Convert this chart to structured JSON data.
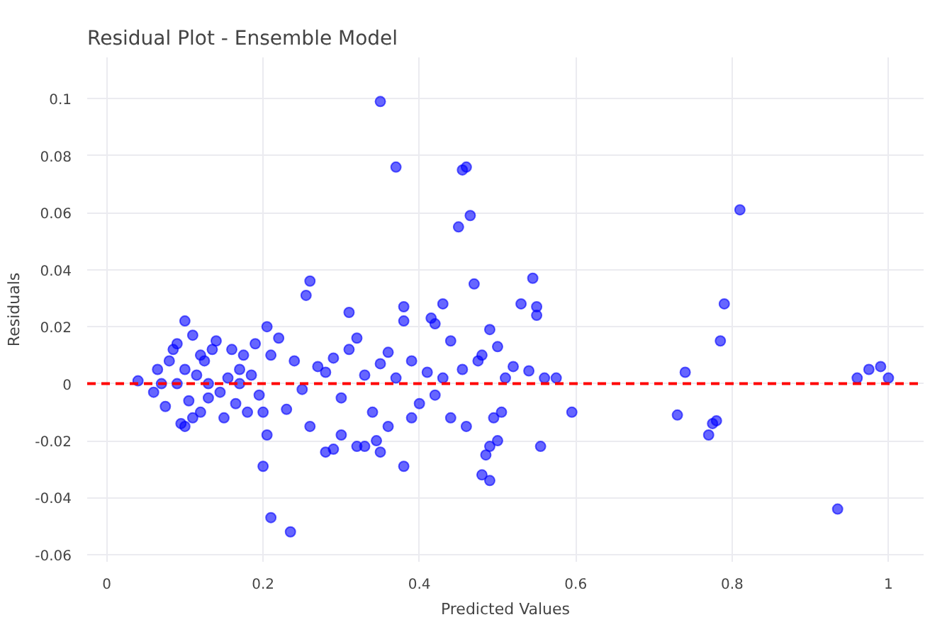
{
  "chart_data": {
    "type": "scatter",
    "title": "Residual Plot - Ensemble Model",
    "xlabel": "Predicted Values",
    "ylabel": "Residuals",
    "xlim": [
      -0.025,
      1.045
    ],
    "ylim": [
      -0.0625,
      0.1145
    ],
    "xticks": [
      0,
      0.2,
      0.4,
      0.6,
      0.8,
      1
    ],
    "yticks": [
      -0.06,
      -0.04,
      -0.02,
      0,
      0.02,
      0.04,
      0.06,
      0.08,
      0.1
    ],
    "grid": true,
    "marker": "circle",
    "ref_lines": [
      {
        "axis": "y",
        "value": 0,
        "color": "#ff0000",
        "line_style": "dashed"
      }
    ],
    "series": [
      {
        "color": "#0000ff",
        "x": [
          0.35,
          0.37,
          0.455,
          0.46,
          0.465,
          0.45,
          0.47,
          0.81,
          0.26,
          0.255,
          0.79,
          0.785,
          0.74,
          0.73,
          0.775,
          0.78,
          0.77,
          0.935,
          0.96,
          0.975,
          0.99,
          1.0,
          0.595,
          0.575,
          0.555,
          0.56,
          0.545,
          0.55,
          0.55,
          0.53,
          0.54,
          0.52,
          0.48,
          0.49,
          0.485,
          0.49,
          0.5,
          0.21,
          0.235,
          0.2,
          0.205,
          0.205,
          0.38,
          0.38,
          0.43,
          0.415,
          0.42,
          0.31,
          0.38,
          0.28,
          0.29,
          0.35,
          0.32,
          0.33,
          0.345,
          0.36,
          0.3,
          0.49,
          0.5,
          0.51,
          0.505,
          0.495,
          0.46,
          0.475,
          0.48,
          0.44,
          0.455,
          0.04,
          0.1,
          0.11,
          0.09,
          0.095,
          0.1,
          0.15,
          0.07,
          0.06,
          0.08,
          0.12,
          0.13,
          0.14,
          0.16,
          0.17,
          0.18,
          0.19,
          0.2,
          0.21,
          0.22,
          0.23,
          0.24,
          0.25,
          0.27,
          0.26,
          0.28,
          0.29,
          0.3,
          0.31,
          0.32,
          0.33,
          0.34,
          0.35,
          0.36,
          0.37,
          0.39,
          0.4,
          0.41,
          0.42,
          0.43,
          0.44,
          0.39,
          0.065,
          0.075,
          0.085,
          0.1,
          0.105,
          0.115,
          0.12,
          0.125,
          0.135,
          0.145,
          0.155,
          0.165,
          0.175,
          0.185,
          0.195,
          0.11,
          0.09,
          0.13,
          0.17
        ],
        "values": [
          0.099,
          0.076,
          0.075,
          0.076,
          0.059,
          0.055,
          0.035,
          0.061,
          0.036,
          0.031,
          0.028,
          0.015,
          0.004,
          -0.011,
          -0.014,
          -0.013,
          -0.018,
          -0.044,
          0.002,
          0.005,
          0.006,
          0.002,
          -0.01,
          0.002,
          -0.022,
          0.002,
          0.037,
          0.024,
          0.027,
          0.028,
          0.0045,
          0.006,
          -0.032,
          -0.034,
          -0.025,
          -0.022,
          -0.02,
          -0.047,
          -0.052,
          -0.029,
          -0.018,
          0.02,
          0.027,
          0.022,
          0.028,
          0.023,
          0.021,
          0.025,
          -0.029,
          -0.024,
          -0.023,
          -0.024,
          -0.022,
          -0.022,
          -0.02,
          -0.015,
          -0.018,
          0.019,
          0.013,
          0.002,
          -0.01,
          -0.012,
          -0.015,
          0.008,
          0.01,
          0.015,
          0.005,
          0.001,
          0.022,
          0.017,
          0.014,
          -0.014,
          -0.015,
          -0.012,
          0.0,
          -0.003,
          0.008,
          0.01,
          -0.005,
          0.015,
          0.012,
          0.005,
          -0.01,
          0.014,
          -0.01,
          0.01,
          0.016,
          -0.009,
          0.008,
          -0.002,
          0.006,
          -0.015,
          0.004,
          0.009,
          -0.005,
          0.012,
          0.016,
          0.003,
          -0.01,
          0.007,
          0.011,
          0.002,
          0.008,
          -0.007,
          0.004,
          -0.004,
          0.002,
          -0.012,
          -0.012,
          0.005,
          -0.008,
          0.012,
          0.005,
          -0.006,
          0.003,
          -0.01,
          0.008,
          0.012,
          -0.003,
          0.002,
          -0.007,
          0.01,
          0.003,
          -0.004,
          -0.012,
          0.0,
          0.0,
          0.0
        ]
      }
    ]
  }
}
